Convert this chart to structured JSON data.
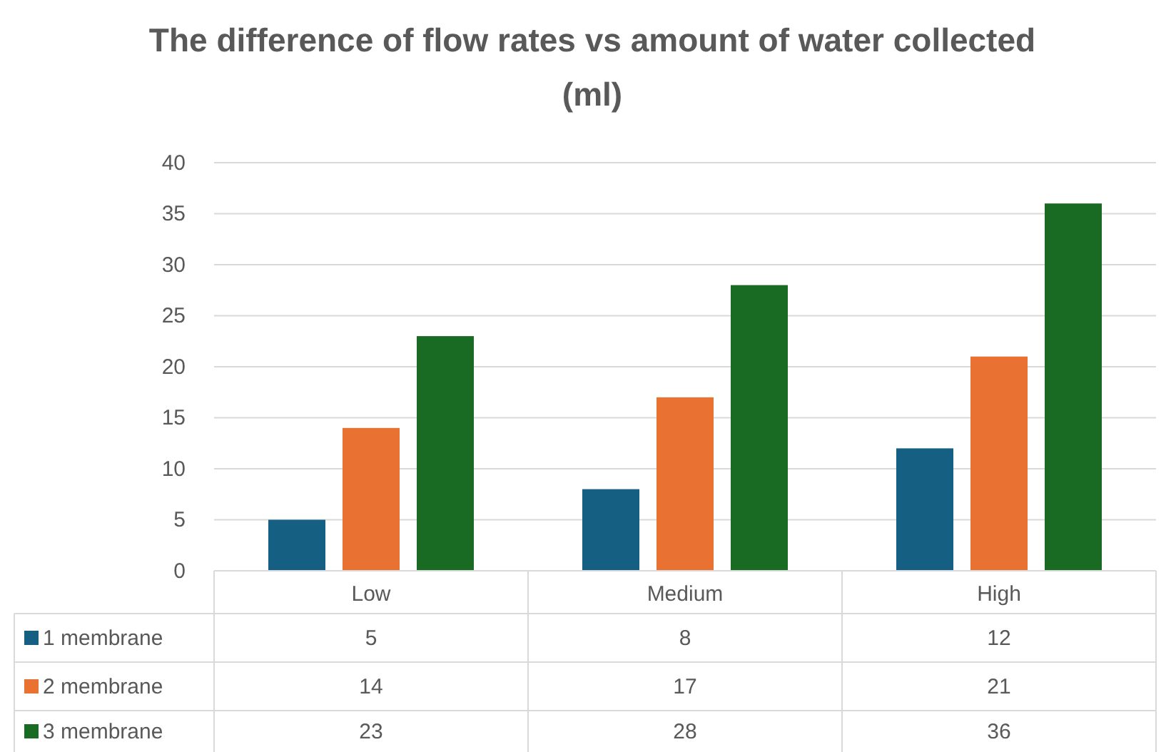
{
  "chart_data": {
    "type": "bar",
    "title": "The difference of flow rates vs amount of water collected (ml)",
    "categories": [
      "Low",
      "Medium",
      "High"
    ],
    "series": [
      {
        "name": "1 membrane",
        "color": "#156082",
        "values": [
          5,
          8,
          12
        ]
      },
      {
        "name": "2 membrane",
        "color": "#e97132",
        "values": [
          14,
          17,
          21
        ]
      },
      {
        "name": "3 membrane",
        "color": "#196b24",
        "values": [
          23,
          28,
          36
        ]
      }
    ],
    "ylim": [
      0,
      40
    ],
    "yticks": [
      0,
      5,
      10,
      15,
      20,
      25,
      30,
      35,
      40
    ],
    "grid": "y",
    "data_labels": true,
    "legend": "bottom"
  }
}
